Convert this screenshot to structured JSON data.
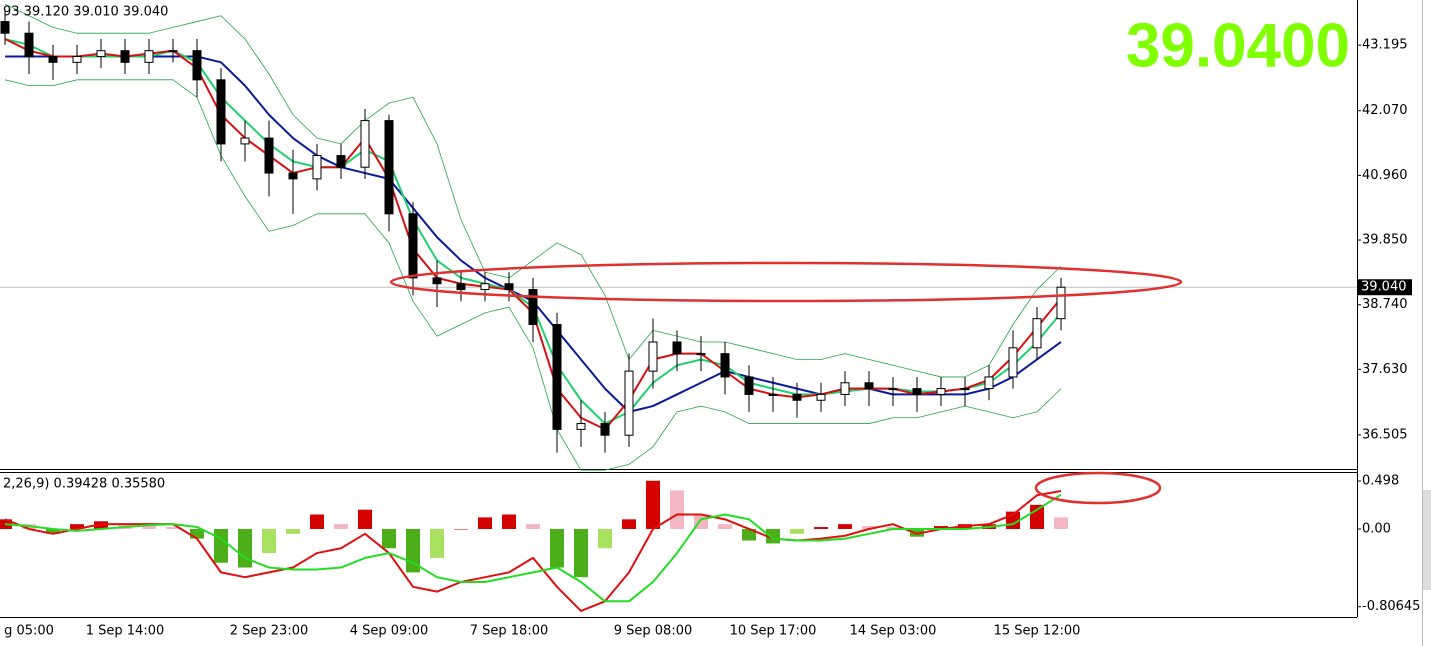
{
  "chart_data": [
    {
      "type": "candlestick",
      "header": "93 39.120 39.010 39.040",
      "big_price": "39.0400",
      "last_price": {
        "value": 39.04,
        "label": "39.040"
      },
      "categories": [
        null,
        "g 05:00",
        null,
        null,
        null,
        "1 Sep 14:00",
        null,
        null,
        null,
        null,
        null,
        "2 Sep 23:00",
        null,
        null,
        null,
        null,
        "4 Sep 09:00",
        null,
        null,
        null,
        null,
        "7 Sep 18:00",
        null,
        null,
        null,
        null,
        null,
        "9 Sep 08:00",
        null,
        null,
        null,
        null,
        "10 Sep 17:00",
        null,
        null,
        null,
        null,
        "14 Sep 03:00",
        null,
        null,
        null,
        null,
        null,
        "15 Sep 12:00",
        null
      ],
      "open": [
        43.6,
        43.4,
        43.0,
        42.9,
        43.0,
        43.1,
        42.9,
        43.1,
        43.1,
        42.6,
        41.5,
        41.6,
        41.0,
        40.9,
        41.3,
        41.1,
        41.9,
        40.3,
        39.2,
        39.1,
        39.0,
        39.1,
        39.0,
        38.4,
        36.6,
        36.7,
        36.5,
        37.6,
        38.1,
        37.9,
        37.9,
        37.5,
        37.2,
        37.2,
        37.1,
        37.2,
        37.4,
        37.3,
        37.3,
        37.2,
        37.3,
        37.3,
        37.5,
        38.0,
        38.5
      ],
      "high": [
        43.8,
        43.6,
        43.2,
        43.2,
        43.3,
        43.3,
        43.3,
        43.3,
        43.3,
        42.8,
        41.9,
        41.9,
        41.4,
        41.5,
        41.5,
        42.1,
        42.0,
        40.5,
        39.5,
        39.3,
        39.3,
        39.3,
        39.2,
        38.6,
        37.1,
        36.9,
        37.9,
        38.5,
        38.3,
        38.2,
        38.1,
        37.7,
        37.5,
        37.4,
        37.4,
        37.6,
        37.6,
        37.5,
        37.5,
        37.5,
        37.5,
        37.7,
        38.3,
        38.7,
        39.2
      ],
      "low": [
        43.2,
        42.7,
        42.6,
        42.7,
        42.8,
        42.7,
        42.7,
        42.9,
        42.3,
        41.2,
        41.2,
        40.6,
        40.3,
        40.7,
        40.9,
        40.9,
        40.0,
        38.9,
        38.7,
        38.8,
        38.8,
        38.8,
        38.1,
        36.2,
        36.3,
        36.2,
        36.3,
        37.3,
        37.6,
        37.6,
        37.2,
        36.9,
        36.9,
        36.8,
        36.9,
        37.0,
        37.0,
        37.0,
        36.9,
        37.0,
        37.0,
        37.1,
        37.3,
        37.8,
        38.3
      ],
      "close": [
        43.4,
        43.0,
        42.9,
        43.0,
        43.1,
        42.9,
        43.1,
        43.1,
        42.6,
        41.5,
        41.6,
        41.0,
        40.9,
        41.3,
        41.1,
        41.9,
        40.3,
        39.2,
        39.1,
        39.0,
        39.1,
        39.0,
        38.4,
        36.6,
        36.7,
        36.5,
        37.6,
        38.1,
        37.9,
        37.9,
        37.5,
        37.2,
        37.2,
        37.1,
        37.2,
        37.4,
        37.3,
        37.3,
        37.2,
        37.3,
        37.3,
        37.5,
        38.0,
        38.5,
        39.04
      ],
      "series": [
        {
          "color": "#22a84a",
          "width": 0.8,
          "values": [
            43.9,
            43.7,
            43.5,
            43.4,
            43.4,
            43.4,
            43.4,
            43.5,
            43.6,
            43.7,
            43.3,
            42.7,
            42.0,
            41.6,
            41.5,
            41.9,
            42.2,
            42.3,
            41.5,
            40.2,
            39.3,
            39.2,
            39.5,
            39.8,
            39.6,
            38.9,
            37.8,
            38.3,
            38.2,
            38.1,
            38.1,
            38.0,
            37.9,
            37.8,
            37.8,
            37.9,
            37.8,
            37.7,
            37.6,
            37.5,
            37.5,
            37.7,
            38.4,
            39.0,
            39.4
          ]
        },
        {
          "color": "#22a84a",
          "width": 0.8,
          "values": [
            42.6,
            42.5,
            42.5,
            42.6,
            42.6,
            42.6,
            42.6,
            42.6,
            42.3,
            41.3,
            40.6,
            40.0,
            40.1,
            40.3,
            40.3,
            40.3,
            39.8,
            38.8,
            38.2,
            38.4,
            38.6,
            38.7,
            38.0,
            36.6,
            35.9,
            35.9,
            36.0,
            36.3,
            36.9,
            37.0,
            36.9,
            36.7,
            36.7,
            36.7,
            36.7,
            36.7,
            36.7,
            36.8,
            36.8,
            36.9,
            37.0,
            36.9,
            36.8,
            36.9,
            37.3
          ]
        },
        {
          "color": "#0a1a9c",
          "width": 2,
          "values": [
            43.0,
            43.0,
            43.0,
            43.0,
            43.0,
            43.0,
            43.0,
            43.0,
            43.0,
            42.9,
            42.5,
            42.0,
            41.6,
            41.3,
            41.1,
            41.0,
            40.9,
            40.4,
            39.9,
            39.5,
            39.2,
            39.0,
            38.8,
            38.3,
            37.8,
            37.3,
            36.9,
            37.0,
            37.2,
            37.4,
            37.6,
            37.5,
            37.4,
            37.3,
            37.2,
            37.3,
            37.3,
            37.2,
            37.2,
            37.2,
            37.2,
            37.3,
            37.5,
            37.8,
            38.1
          ]
        },
        {
          "color": "#20d070",
          "width": 2,
          "values": [
            43.3,
            43.2,
            43.0,
            43.0,
            43.0,
            43.0,
            43.0,
            43.1,
            42.9,
            42.3,
            41.9,
            41.5,
            41.2,
            41.1,
            41.1,
            41.4,
            41.2,
            40.2,
            39.5,
            39.2,
            39.1,
            39.0,
            38.7,
            37.7,
            37.1,
            36.7,
            36.9,
            37.4,
            37.7,
            37.8,
            37.7,
            37.4,
            37.3,
            37.2,
            37.2,
            37.25,
            37.3,
            37.3,
            37.25,
            37.25,
            37.3,
            37.4,
            37.7,
            38.1,
            38.6
          ]
        },
        {
          "color": "#d81010",
          "width": 2,
          "values": [
            43.3,
            43.1,
            43.0,
            43.0,
            43.05,
            43.0,
            43.05,
            43.1,
            42.8,
            42.0,
            41.6,
            41.3,
            41.0,
            41.1,
            41.1,
            41.6,
            40.9,
            39.7,
            39.2,
            39.1,
            39.05,
            39.0,
            38.6,
            37.3,
            36.8,
            36.6,
            37.1,
            37.8,
            37.9,
            37.9,
            37.6,
            37.3,
            37.2,
            37.15,
            37.2,
            37.3,
            37.3,
            37.3,
            37.2,
            37.25,
            37.3,
            37.45,
            37.85,
            38.35,
            38.85
          ]
        }
      ],
      "bull_color": "#ffffff",
      "bear_color": "#000000",
      "ylim": [
        35.92,
        43.97
      ],
      "yticks": [
        43.195,
        {
          "value": 42.07,
          "label": "42.070"
        },
        {
          "value": 40.96,
          "label": "40.960"
        },
        {
          "value": 39.85,
          "label": "39.850"
        },
        {
          "value": 38.74,
          "label": "38.740"
        },
        {
          "value": 37.63,
          "label": "37.630"
        },
        36.505
      ]
    },
    {
      "type": "macd",
      "label": "2,26,9) 0.39428 0.35580",
      "histogram": [
        0.1,
        0.05,
        -0.05,
        0.05,
        0.08,
        0.05,
        0.03,
        0.02,
        -0.1,
        -0.35,
        -0.4,
        -0.25,
        -0.05,
        0.15,
        0.05,
        0.2,
        -0.2,
        -0.45,
        -0.3,
        0.0,
        0.12,
        0.15,
        0.05,
        -0.4,
        -0.5,
        -0.2,
        0.1,
        0.5,
        0.4,
        0.15,
        0.05,
        -0.12,
        -0.15,
        -0.05,
        0.02,
        0.05,
        0.03,
        0.02,
        -0.08,
        0.03,
        0.05,
        0.05,
        0.18,
        0.25,
        0.12
      ],
      "hist_colors": {
        "up_rise": "#d40000",
        "up_fall": "#f4b6c2",
        "down_fall": "#4caf1a",
        "down_rise": "#a8e060"
      },
      "series": [
        {
          "color": "#e01010",
          "values": [
            0.1,
            0.0,
            -0.05,
            0.0,
            0.05,
            0.05,
            0.05,
            0.05,
            -0.1,
            -0.45,
            -0.5,
            -0.45,
            -0.4,
            -0.25,
            -0.2,
            -0.05,
            -0.25,
            -0.6,
            -0.65,
            -0.55,
            -0.5,
            -0.45,
            -0.3,
            -0.6,
            -0.85,
            -0.75,
            -0.45,
            0.0,
            0.15,
            0.15,
            0.1,
            0.0,
            -0.1,
            -0.12,
            -0.1,
            -0.07,
            0.0,
            0.05,
            -0.05,
            0.0,
            0.03,
            0.05,
            0.15,
            0.35,
            0.39428
          ]
        },
        {
          "color": "#22dd22",
          "values": [
            0.05,
            0.03,
            0.0,
            -0.02,
            0.0,
            0.02,
            0.04,
            0.05,
            0.02,
            -0.1,
            -0.3,
            -0.4,
            -0.42,
            -0.42,
            -0.4,
            -0.3,
            -0.25,
            -0.35,
            -0.5,
            -0.55,
            -0.55,
            -0.5,
            -0.45,
            -0.4,
            -0.55,
            -0.75,
            -0.75,
            -0.55,
            -0.25,
            0.1,
            0.15,
            0.1,
            -0.1,
            -0.12,
            -0.12,
            -0.1,
            -0.05,
            0.0,
            0.0,
            0.0,
            0.0,
            0.02,
            0.05,
            0.2,
            0.3558
          ]
        }
      ],
      "ylim": [
        -0.913,
        0.591
      ],
      "yticks": [
        0.498,
        {
          "value": 0,
          "label": "0.00"
        },
        -0.80645
      ]
    }
  ]
}
